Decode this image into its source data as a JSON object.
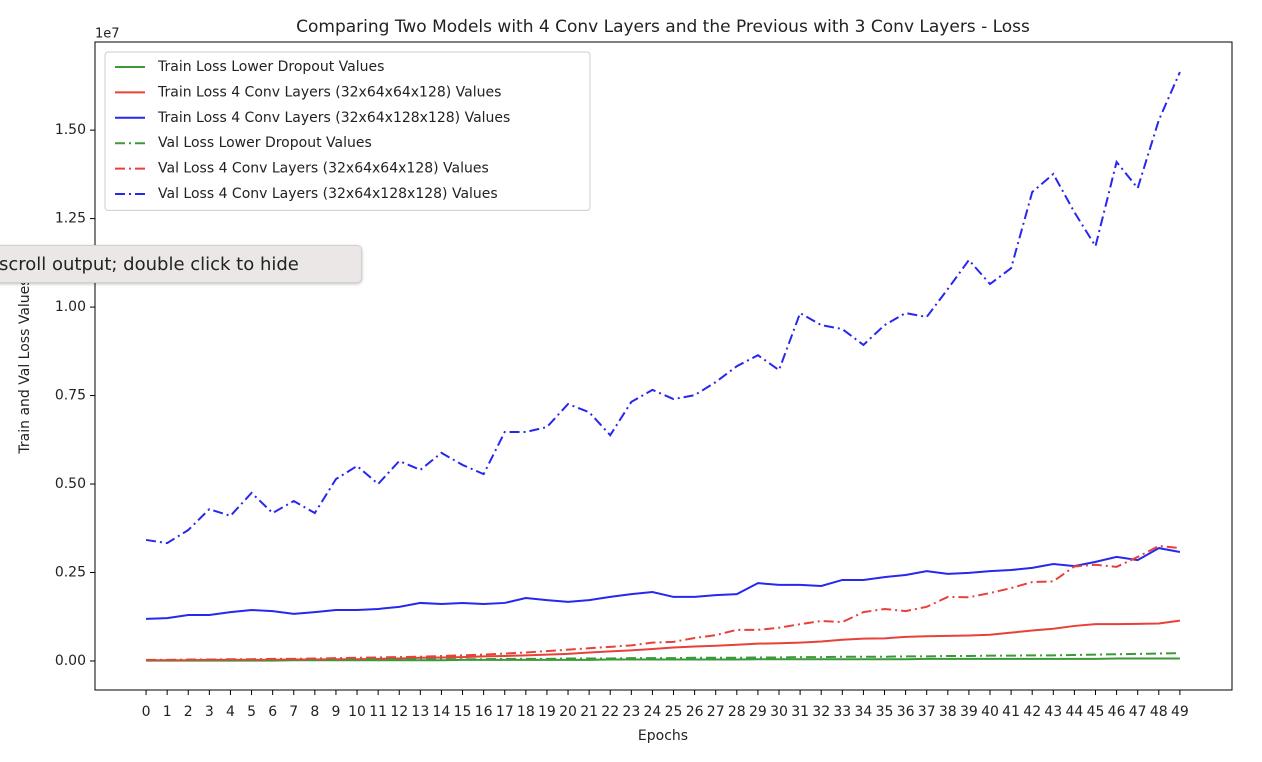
{
  "tooltip": "scroll output; double click to hide",
  "chart_data": {
    "type": "line",
    "title": "Comparing Two Models with 4 Conv Layers and the Previous with 3 Conv Layers - Loss",
    "x_label": "Epochs",
    "y_label": "Train and Val Loss Values",
    "y_offset_label": "1e7",
    "x": [
      0,
      1,
      2,
      3,
      4,
      5,
      6,
      7,
      8,
      9,
      10,
      11,
      12,
      13,
      14,
      15,
      16,
      17,
      18,
      19,
      20,
      21,
      22,
      23,
      24,
      25,
      26,
      27,
      28,
      29,
      30,
      31,
      32,
      33,
      34,
      35,
      36,
      37,
      38,
      39,
      40,
      41,
      42,
      43,
      44,
      45,
      46,
      47,
      48,
      49
    ],
    "xticks": [
      0,
      1,
      2,
      3,
      4,
      5,
      6,
      7,
      8,
      9,
      10,
      11,
      12,
      13,
      14,
      15,
      16,
      17,
      18,
      19,
      20,
      21,
      22,
      23,
      24,
      25,
      26,
      27,
      28,
      29,
      30,
      31,
      32,
      33,
      34,
      35,
      36,
      37,
      38,
      39,
      40,
      41,
      42,
      43,
      44,
      45,
      46,
      47,
      48,
      49
    ],
    "xlim": [
      -2.42,
      51.47
    ],
    "ylim": [
      -0.082,
      1.749
    ],
    "yticks": [
      {
        "value": 0,
        "label": "0.00"
      },
      {
        "value": 0.25,
        "label": "0.25"
      },
      {
        "value": 0.5,
        "label": "0.50"
      },
      {
        "value": 0.75,
        "label": "0.75"
      },
      {
        "value": 1,
        "label": "1.00"
      },
      {
        "value": 1.25,
        "label": "1.25"
      },
      {
        "value": 1.5,
        "label": "1.50"
      }
    ],
    "legend": "upper left",
    "series": [
      {
        "name": "Train Loss Lower Dropout Values",
        "color": "#3a9a3a",
        "linestyle": "solid",
        "values": [
          0.001,
          0.001,
          0.001,
          0.001,
          0.001,
          0.001,
          0.001,
          0.002,
          0.002,
          0.002,
          0.002,
          0.002,
          0.002,
          0.002,
          0.002,
          0.003,
          0.003,
          0.003,
          0.003,
          0.003,
          0.003,
          0.003,
          0.004,
          0.004,
          0.004,
          0.004,
          0.004,
          0.004,
          0.004,
          0.005,
          0.005,
          0.005,
          0.005,
          0.005,
          0.005,
          0.005,
          0.005,
          0.006,
          0.006,
          0.006,
          0.006,
          0.006,
          0.006,
          0.006,
          0.006,
          0.006,
          0.007,
          0.007,
          0.007,
          0.007
        ]
      },
      {
        "name": "Train Loss 4 Conv Layers (32x64x64x128) Values",
        "color": "#e8413a",
        "linestyle": "solid",
        "values": [
          0.002,
          0.002,
          0.002,
          0.003,
          0.003,
          0.003,
          0.003,
          0.004,
          0.004,
          0.005,
          0.005,
          0.006,
          0.007,
          0.009,
          0.01,
          0.011,
          0.013,
          0.014,
          0.016,
          0.018,
          0.02,
          0.024,
          0.027,
          0.03,
          0.034,
          0.038,
          0.041,
          0.043,
          0.046,
          0.049,
          0.05,
          0.052,
          0.055,
          0.06,
          0.063,
          0.064,
          0.068,
          0.07,
          0.071,
          0.072,
          0.074,
          0.08,
          0.086,
          0.091,
          0.099,
          0.104,
          0.104,
          0.105,
          0.106,
          0.114
        ]
      },
      {
        "name": "Train Loss 4 Conv Layers (32x64x128x128) Values",
        "color": "#2727f0",
        "linestyle": "solid",
        "values": [
          0.119,
          0.121,
          0.13,
          0.13,
          0.138,
          0.144,
          0.141,
          0.133,
          0.138,
          0.144,
          0.144,
          0.147,
          0.153,
          0.164,
          0.161,
          0.164,
          0.161,
          0.164,
          0.178,
          0.172,
          0.167,
          0.172,
          0.181,
          0.189,
          0.195,
          0.181,
          0.181,
          0.186,
          0.189,
          0.22,
          0.215,
          0.215,
          0.212,
          0.229,
          0.229,
          0.237,
          0.243,
          0.254,
          0.246,
          0.249,
          0.254,
          0.257,
          0.263,
          0.274,
          0.268,
          0.28,
          0.294,
          0.285,
          0.319,
          0.308
        ]
      },
      {
        "name": "Val Loss Lower Dropout Values",
        "color": "#3a9a3a",
        "linestyle": "dashdot",
        "values": [
          0.002,
          0.002,
          0.002,
          0.002,
          0.003,
          0.003,
          0.003,
          0.003,
          0.003,
          0.004,
          0.004,
          0.004,
          0.004,
          0.005,
          0.005,
          0.005,
          0.005,
          0.006,
          0.006,
          0.006,
          0.007,
          0.007,
          0.007,
          0.008,
          0.008,
          0.008,
          0.009,
          0.009,
          0.009,
          0.01,
          0.01,
          0.011,
          0.011,
          0.012,
          0.012,
          0.012,
          0.013,
          0.013,
          0.014,
          0.014,
          0.015,
          0.015,
          0.016,
          0.016,
          0.017,
          0.018,
          0.019,
          0.02,
          0.021,
          0.022
        ]
      },
      {
        "name": "Val Loss 4 Conv Layers (32x64x64x128) Values",
        "color": "#e8413a",
        "linestyle": "dashdot",
        "values": [
          0.003,
          0.003,
          0.004,
          0.004,
          0.005,
          0.005,
          0.006,
          0.006,
          0.007,
          0.008,
          0.009,
          0.01,
          0.011,
          0.012,
          0.014,
          0.016,
          0.018,
          0.021,
          0.024,
          0.028,
          0.032,
          0.036,
          0.04,
          0.044,
          0.052,
          0.054,
          0.065,
          0.073,
          0.088,
          0.088,
          0.094,
          0.104,
          0.113,
          0.11,
          0.138,
          0.147,
          0.141,
          0.153,
          0.181,
          0.18,
          0.192,
          0.206,
          0.223,
          0.225,
          0.267,
          0.272,
          0.266,
          0.294,
          0.325,
          0.319
        ]
      },
      {
        "name": "Val Loss 4 Conv Layers (32x64x128x128) Values",
        "color": "#2727f0",
        "linestyle": "dashdot",
        "values": [
          0.342,
          0.333,
          0.37,
          0.429,
          0.41,
          0.475,
          0.418,
          0.452,
          0.418,
          0.514,
          0.551,
          0.5,
          0.565,
          0.54,
          0.588,
          0.554,
          0.528,
          0.647,
          0.647,
          0.661,
          0.726,
          0.703,
          0.638,
          0.732,
          0.766,
          0.74,
          0.751,
          0.788,
          0.833,
          0.864,
          0.822,
          0.983,
          0.949,
          0.938,
          0.893,
          0.949,
          0.983,
          0.972,
          1.051,
          1.133,
          1.065,
          1.11,
          1.325,
          1.376,
          1.268,
          1.172,
          1.41,
          1.336,
          1.528,
          1.664
        ]
      }
    ]
  }
}
